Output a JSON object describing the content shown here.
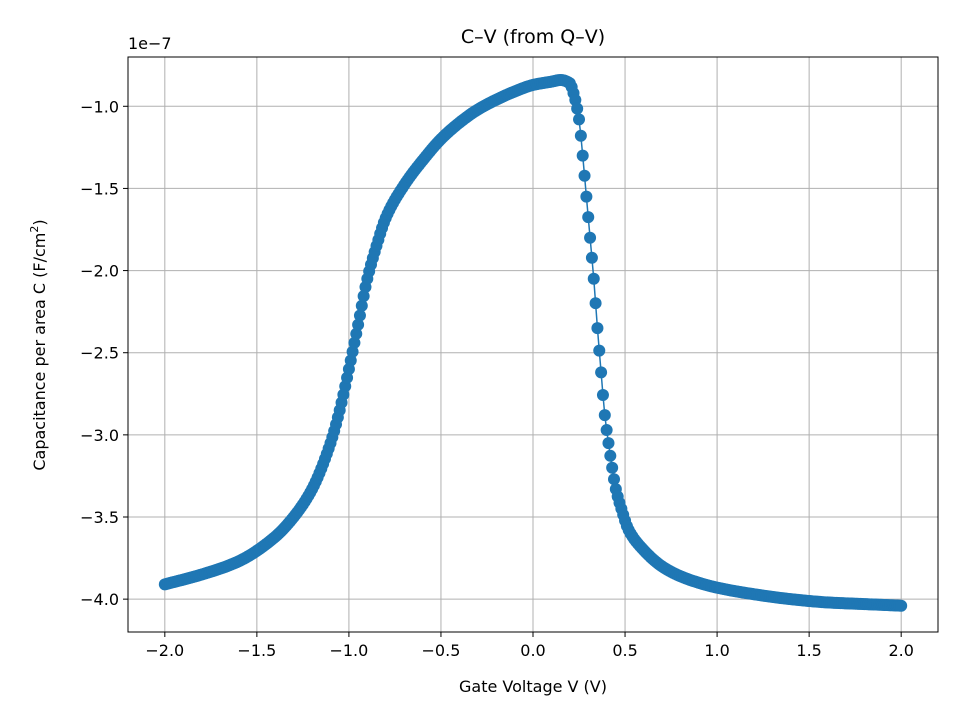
{
  "chart_data": {
    "type": "line",
    "title": "C–V (from Q–V)",
    "xlabel": "Gate Voltage V (V)",
    "ylabel": "Capacitance per area C (F/cm",
    "ylabel_sup": "2",
    "ylabel_close": ")",
    "offset_text": "1e−7",
    "xlim": [
      -2.2,
      2.2
    ],
    "ylim": [
      -4.2,
      -0.7
    ],
    "xticks": [
      -2.0,
      -1.5,
      -1.0,
      -0.5,
      0.0,
      0.5,
      1.0,
      1.5,
      2.0
    ],
    "xtick_labels": [
      "−2.0",
      "−1.5",
      "−1.0",
      "−0.5",
      "0.0",
      "0.5",
      "1.0",
      "1.5",
      "2.0"
    ],
    "yticks": [
      -4.0,
      -3.5,
      -3.0,
      -2.5,
      -2.0,
      -1.5,
      -1.0
    ],
    "ytick_labels": [
      "−4.0",
      "−3.5",
      "−3.0",
      "−2.5",
      "−2.0",
      "−1.5",
      "−1.0"
    ],
    "grid": true,
    "markers": "circle",
    "color": "#1f77b4",
    "curve_points": {
      "x": [
        -2.0,
        -1.8,
        -1.6,
        -1.4,
        -1.3,
        -1.2,
        -1.1,
        -1.05,
        -1.0,
        -0.95,
        -0.9,
        -0.85,
        -0.8,
        -0.7,
        -0.6,
        -0.5,
        -0.4,
        -0.3,
        -0.2,
        -0.1,
        0.0,
        0.1,
        0.15,
        0.2,
        0.22,
        0.25,
        0.27,
        0.29,
        0.31,
        0.33,
        0.35,
        0.37,
        0.39,
        0.41,
        0.43,
        0.45,
        0.48,
        0.52,
        0.6,
        0.7,
        0.8,
        0.9,
        1.0,
        1.2,
        1.4,
        1.6,
        1.8,
        2.0
      ],
      "y": [
        -3.91,
        -3.85,
        -3.77,
        -3.62,
        -3.5,
        -3.33,
        -3.05,
        -2.85,
        -2.6,
        -2.33,
        -2.05,
        -1.85,
        -1.68,
        -1.48,
        -1.33,
        -1.2,
        -1.1,
        -1.02,
        -0.96,
        -0.91,
        -0.87,
        -0.85,
        -0.84,
        -0.86,
        -0.92,
        -1.08,
        -1.3,
        -1.55,
        -1.8,
        -2.05,
        -2.35,
        -2.62,
        -2.88,
        -3.05,
        -3.2,
        -3.33,
        -3.45,
        -3.58,
        -3.7,
        -3.8,
        -3.86,
        -3.9,
        -3.93,
        -3.97,
        -4.0,
        -4.02,
        -4.03,
        -4.04
      ]
    }
  }
}
